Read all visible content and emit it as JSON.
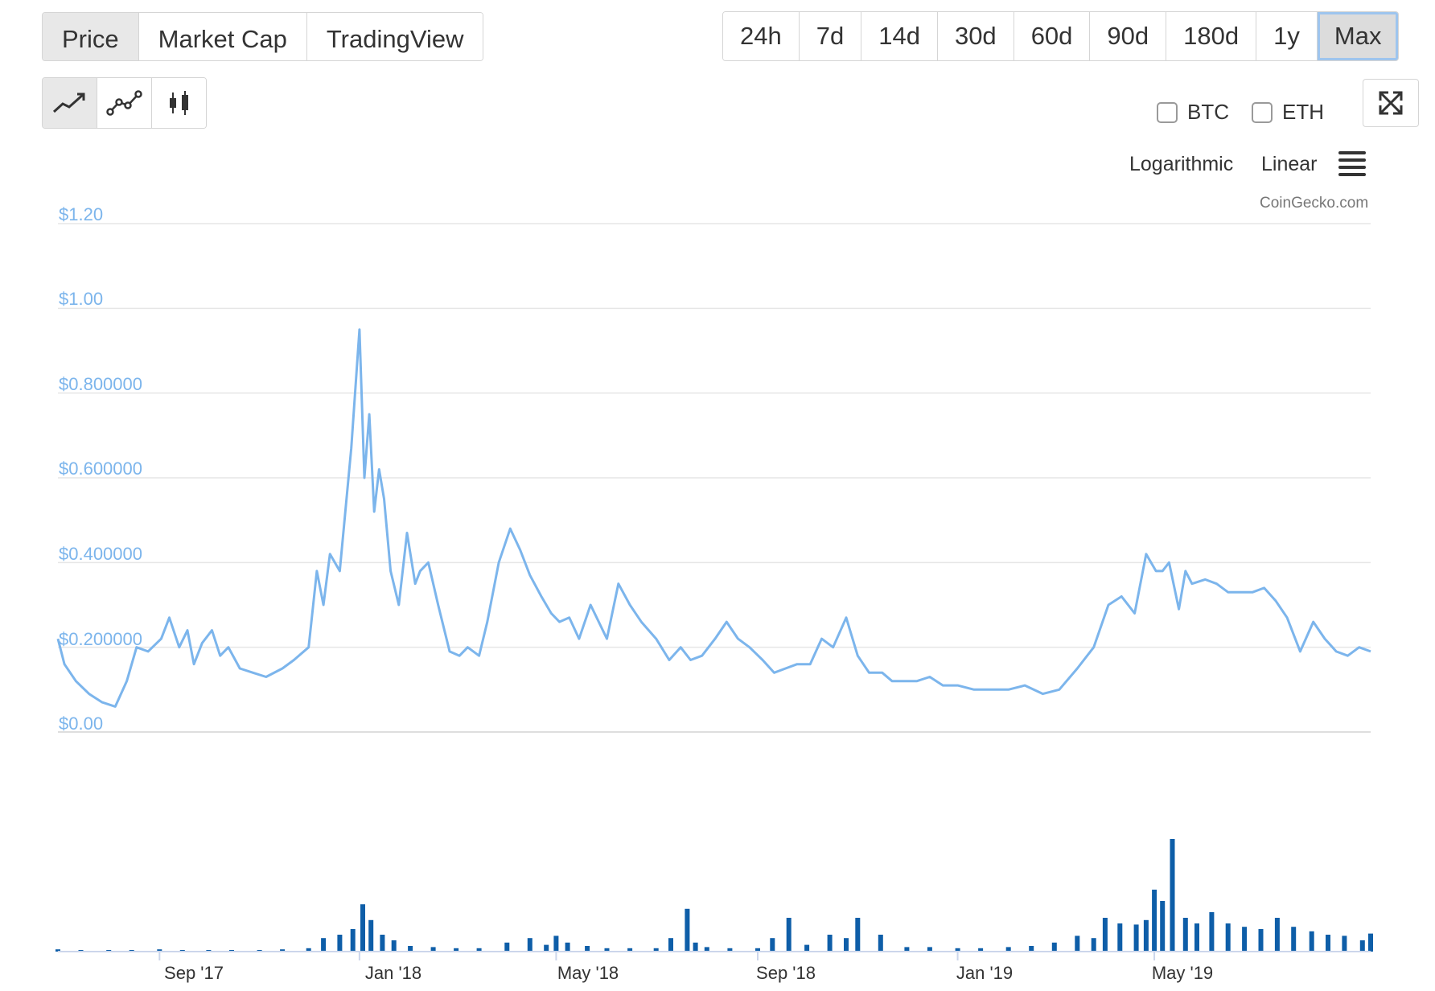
{
  "tabs": [
    {
      "label": "Price",
      "active": true
    },
    {
      "label": "Market Cap",
      "active": false
    },
    {
      "label": "TradingView",
      "active": false
    }
  ],
  "ranges": [
    {
      "label": "24h",
      "active": false
    },
    {
      "label": "7d",
      "active": false
    },
    {
      "label": "14d",
      "active": false
    },
    {
      "label": "30d",
      "active": false
    },
    {
      "label": "60d",
      "active": false
    },
    {
      "label": "90d",
      "active": false
    },
    {
      "label": "180d",
      "active": false
    },
    {
      "label": "1y",
      "active": false
    },
    {
      "label": "Max",
      "active": true
    }
  ],
  "chart_types": [
    {
      "icon": "line-chart-icon",
      "active": true
    },
    {
      "icon": "line-markers-chart-icon",
      "active": false
    },
    {
      "icon": "candlestick-chart-icon",
      "active": false
    }
  ],
  "compare": [
    {
      "label": "BTC",
      "checked": false
    },
    {
      "label": "ETH",
      "checked": false
    }
  ],
  "scale_options": {
    "log": "Logarithmic",
    "linear": "Linear"
  },
  "credit": "CoinGecko.com",
  "colors": {
    "price_line": "#7cb5ec",
    "volume_bar": "#0e5ea8",
    "axis_label": "#7cb5ec",
    "grid": "#e6e6e6"
  },
  "chart_data": {
    "type": "line",
    "ylim": [
      0,
      1.2
    ],
    "y_ticks": [
      "$0.00",
      "$0.200000",
      "$0.400000",
      "$0.600000",
      "$0.800000",
      "$1.00",
      "$1.20"
    ],
    "x_ticks": [
      "Sep '17",
      "Jan '18",
      "May '18",
      "Sep '18",
      "Jan '19",
      "May '19"
    ],
    "x_range": [
      "2017-07-01",
      "2019-09-10"
    ],
    "x_tick_dates": [
      "2017-09-01",
      "2018-01-01",
      "2018-05-01",
      "2018-09-01",
      "2019-01-01",
      "2019-05-01"
    ],
    "price_series": {
      "x": [
        "2017-07-01",
        "2017-07-05",
        "2017-07-12",
        "2017-07-20",
        "2017-07-28",
        "2017-08-05",
        "2017-08-12",
        "2017-08-18",
        "2017-08-25",
        "2017-09-02",
        "2017-09-07",
        "2017-09-13",
        "2017-09-18",
        "2017-09-22",
        "2017-09-27",
        "2017-10-03",
        "2017-10-08",
        "2017-10-13",
        "2017-10-20",
        "2017-10-28",
        "2017-11-05",
        "2017-11-15",
        "2017-11-22",
        "2017-12-01",
        "2017-12-06",
        "2017-12-10",
        "2017-12-14",
        "2017-12-20",
        "2017-12-27",
        "2018-01-01",
        "2018-01-04",
        "2018-01-07",
        "2018-01-10",
        "2018-01-13",
        "2018-01-16",
        "2018-01-20",
        "2018-01-25",
        "2018-01-30",
        "2018-02-04",
        "2018-02-07",
        "2018-02-12",
        "2018-02-18",
        "2018-02-25",
        "2018-03-03",
        "2018-03-08",
        "2018-03-15",
        "2018-03-20",
        "2018-03-27",
        "2018-04-03",
        "2018-04-09",
        "2018-04-15",
        "2018-04-22",
        "2018-04-28",
        "2018-05-03",
        "2018-05-09",
        "2018-05-15",
        "2018-05-22",
        "2018-06-01",
        "2018-06-08",
        "2018-06-15",
        "2018-06-22",
        "2018-07-01",
        "2018-07-09",
        "2018-07-16",
        "2018-07-22",
        "2018-07-29",
        "2018-08-06",
        "2018-08-13",
        "2018-08-20",
        "2018-08-27",
        "2018-09-04",
        "2018-09-11",
        "2018-09-18",
        "2018-09-25",
        "2018-10-03",
        "2018-10-10",
        "2018-10-17",
        "2018-10-25",
        "2018-11-01",
        "2018-11-08",
        "2018-11-16",
        "2018-11-22",
        "2018-11-29",
        "2018-12-07",
        "2018-12-15",
        "2018-12-23",
        "2019-01-01",
        "2019-01-11",
        "2019-01-21",
        "2019-02-01",
        "2019-02-11",
        "2019-02-22",
        "2019-03-04",
        "2019-03-15",
        "2019-03-25",
        "2019-04-03",
        "2019-04-11",
        "2019-04-19",
        "2019-04-26",
        "2019-05-02",
        "2019-05-06",
        "2019-05-10",
        "2019-05-16",
        "2019-05-20",
        "2019-05-24",
        "2019-06-01",
        "2019-06-08",
        "2019-06-15",
        "2019-06-22",
        "2019-06-30",
        "2019-07-07",
        "2019-07-14",
        "2019-07-21",
        "2019-07-29",
        "2019-08-06",
        "2019-08-13",
        "2019-08-20",
        "2019-08-27",
        "2019-09-03",
        "2019-09-10"
      ],
      "y": [
        0.22,
        0.16,
        0.12,
        0.09,
        0.07,
        0.06,
        0.12,
        0.2,
        0.19,
        0.22,
        0.27,
        0.2,
        0.24,
        0.16,
        0.21,
        0.24,
        0.18,
        0.2,
        0.15,
        0.14,
        0.13,
        0.15,
        0.17,
        0.2,
        0.38,
        0.3,
        0.42,
        0.38,
        0.67,
        0.95,
        0.6,
        0.75,
        0.52,
        0.62,
        0.55,
        0.38,
        0.3,
        0.47,
        0.35,
        0.38,
        0.4,
        0.3,
        0.19,
        0.18,
        0.2,
        0.18,
        0.26,
        0.4,
        0.48,
        0.43,
        0.37,
        0.32,
        0.28,
        0.26,
        0.27,
        0.22,
        0.3,
        0.22,
        0.35,
        0.3,
        0.26,
        0.22,
        0.17,
        0.2,
        0.17,
        0.18,
        0.22,
        0.26,
        0.22,
        0.2,
        0.17,
        0.14,
        0.15,
        0.16,
        0.16,
        0.22,
        0.2,
        0.27,
        0.18,
        0.14,
        0.14,
        0.12,
        0.12,
        0.12,
        0.13,
        0.11,
        0.11,
        0.1,
        0.1,
        0.1,
        0.11,
        0.09,
        0.1,
        0.15,
        0.2,
        0.3,
        0.32,
        0.28,
        0.42,
        0.38,
        0.38,
        0.4,
        0.29,
        0.38,
        0.35,
        0.36,
        0.35,
        0.33,
        0.33,
        0.33,
        0.34,
        0.31,
        0.27,
        0.19,
        0.26,
        0.22,
        0.19,
        0.18,
        0.2,
        0.19
      ]
    },
    "volume_series": {
      "x": [
        "2017-07-01",
        "2017-07-15",
        "2017-08-01",
        "2017-08-15",
        "2017-09-01",
        "2017-09-15",
        "2017-10-01",
        "2017-10-15",
        "2017-11-01",
        "2017-11-15",
        "2017-12-01",
        "2017-12-10",
        "2017-12-20",
        "2017-12-28",
        "2018-01-03",
        "2018-01-08",
        "2018-01-15",
        "2018-01-22",
        "2018-02-01",
        "2018-02-15",
        "2018-03-01",
        "2018-03-15",
        "2018-04-01",
        "2018-04-15",
        "2018-04-25",
        "2018-05-01",
        "2018-05-08",
        "2018-05-20",
        "2018-06-01",
        "2018-06-15",
        "2018-07-01",
        "2018-07-10",
        "2018-07-20",
        "2018-07-25",
        "2018-08-01",
        "2018-08-15",
        "2018-09-01",
        "2018-09-10",
        "2018-09-20",
        "2018-10-01",
        "2018-10-15",
        "2018-10-25",
        "2018-11-01",
        "2018-11-15",
        "2018-12-01",
        "2018-12-15",
        "2019-01-01",
        "2019-01-15",
        "2019-02-01",
        "2019-02-15",
        "2019-03-01",
        "2019-03-15",
        "2019-03-25",
        "2019-04-01",
        "2019-04-10",
        "2019-04-20",
        "2019-04-26",
        "2019-05-01",
        "2019-05-06",
        "2019-05-12",
        "2019-05-20",
        "2019-05-27",
        "2019-06-05",
        "2019-06-15",
        "2019-06-25",
        "2019-07-05",
        "2019-07-15",
        "2019-07-25",
        "2019-08-05",
        "2019-08-15",
        "2019-08-25",
        "2019-09-05",
        "2019-09-10"
      ],
      "v": [
        0.02,
        0.01,
        0.01,
        0.01,
        0.02,
        0.01,
        0.01,
        0.01,
        0.01,
        0.02,
        0.03,
        0.12,
        0.15,
        0.2,
        0.42,
        0.28,
        0.15,
        0.1,
        0.05,
        0.04,
        0.03,
        0.03,
        0.08,
        0.12,
        0.06,
        0.14,
        0.08,
        0.05,
        0.03,
        0.03,
        0.03,
        0.12,
        0.38,
        0.08,
        0.04,
        0.03,
        0.03,
        0.12,
        0.3,
        0.06,
        0.15,
        0.12,
        0.3,
        0.15,
        0.04,
        0.04,
        0.03,
        0.03,
        0.04,
        0.05,
        0.08,
        0.14,
        0.12,
        0.3,
        0.25,
        0.24,
        0.28,
        0.55,
        0.45,
        1.0,
        0.3,
        0.25,
        0.35,
        0.25,
        0.22,
        0.2,
        0.3,
        0.22,
        0.18,
        0.15,
        0.14,
        0.1,
        0.16
      ]
    }
  }
}
